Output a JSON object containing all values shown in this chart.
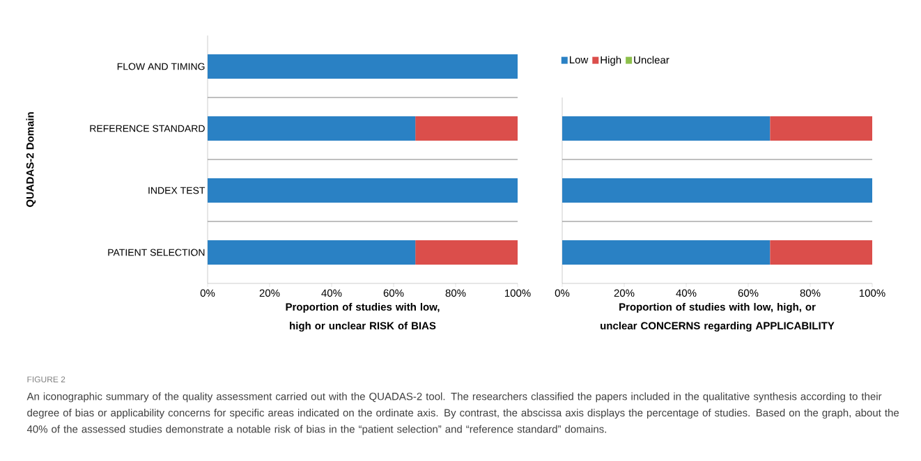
{
  "chart_data": [
    {
      "type": "bar",
      "orientation": "horizontal",
      "stacked": true,
      "ylabel": "QUADAS-2 Domain",
      "xlabel": "Proportion of studies with low, high or unclear RISK of BIAS",
      "categories": [
        "FLOW AND TIMING",
        "REFERENCE STANDARD",
        "INDEX TEST",
        "PATIENT SELECTION"
      ],
      "series": [
        {
          "color": "#2a81c4",
          "values": [
            100,
            67,
            100,
            67
          ]
        },
        {
          "color": "#db4e4b",
          "values": [
            0,
            33,
            0,
            33
          ]
        }
      ],
      "xlim": [
        0,
        100
      ],
      "xticks": [
        {
          "value": 0,
          "label": "0%"
        },
        {
          "value": 20,
          "label": "20%"
        },
        {
          "value": 40,
          "label": "40%"
        },
        {
          "value": 60,
          "label": "60%"
        },
        {
          "value": 80,
          "label": "80%"
        },
        {
          "value": 100,
          "label": "100%"
        }
      ],
      "grid": "y",
      "legend": false,
      "annotations": [
        "FIGURE 2",
        "An iconographic summary of the quality assessment carried out with the QUADAS-2 tool. The researchers classified the papers included in the qualitative synthesis according to their degree of bias or applicability concerns for specific areas indicated on the ordinate axis. By contrast, the abscissa axis displays the percentage of studies. Based on the graph, about the 40% of the assessed studies demonstrate a notable risk of bias in the “patient selection” and “reference standard” domains."
      ]
    },
    {
      "type": "bar",
      "orientation": "horizontal",
      "stacked": true,
      "xlabel": "Proportion of studies with low, high, or unclear CONCERNS regarding APPLICABILITY",
      "categories": [
        null,
        null,
        null
      ],
      "series": [
        {
          "name": "Low",
          "color": "#2a81c4",
          "values": [
            67,
            100,
            67
          ]
        },
        {
          "name": "High",
          "color": "#db4e4b",
          "values": [
            33,
            0,
            33
          ]
        },
        {
          "name": "Unclear",
          "color": "#8dc04b",
          "values": [
            0,
            0,
            0
          ]
        }
      ],
      "xlim": [
        0,
        100
      ],
      "xticks": [
        {
          "value": 0,
          "label": "0%"
        },
        {
          "value": 20,
          "label": "20%"
        },
        {
          "value": 40,
          "label": "40%"
        },
        {
          "value": 60,
          "label": "60%"
        },
        {
          "value": 80,
          "label": "80%"
        },
        {
          "value": 100,
          "label": "100%"
        }
      ],
      "grid": "y",
      "legend": "top left"
    }
  ]
}
